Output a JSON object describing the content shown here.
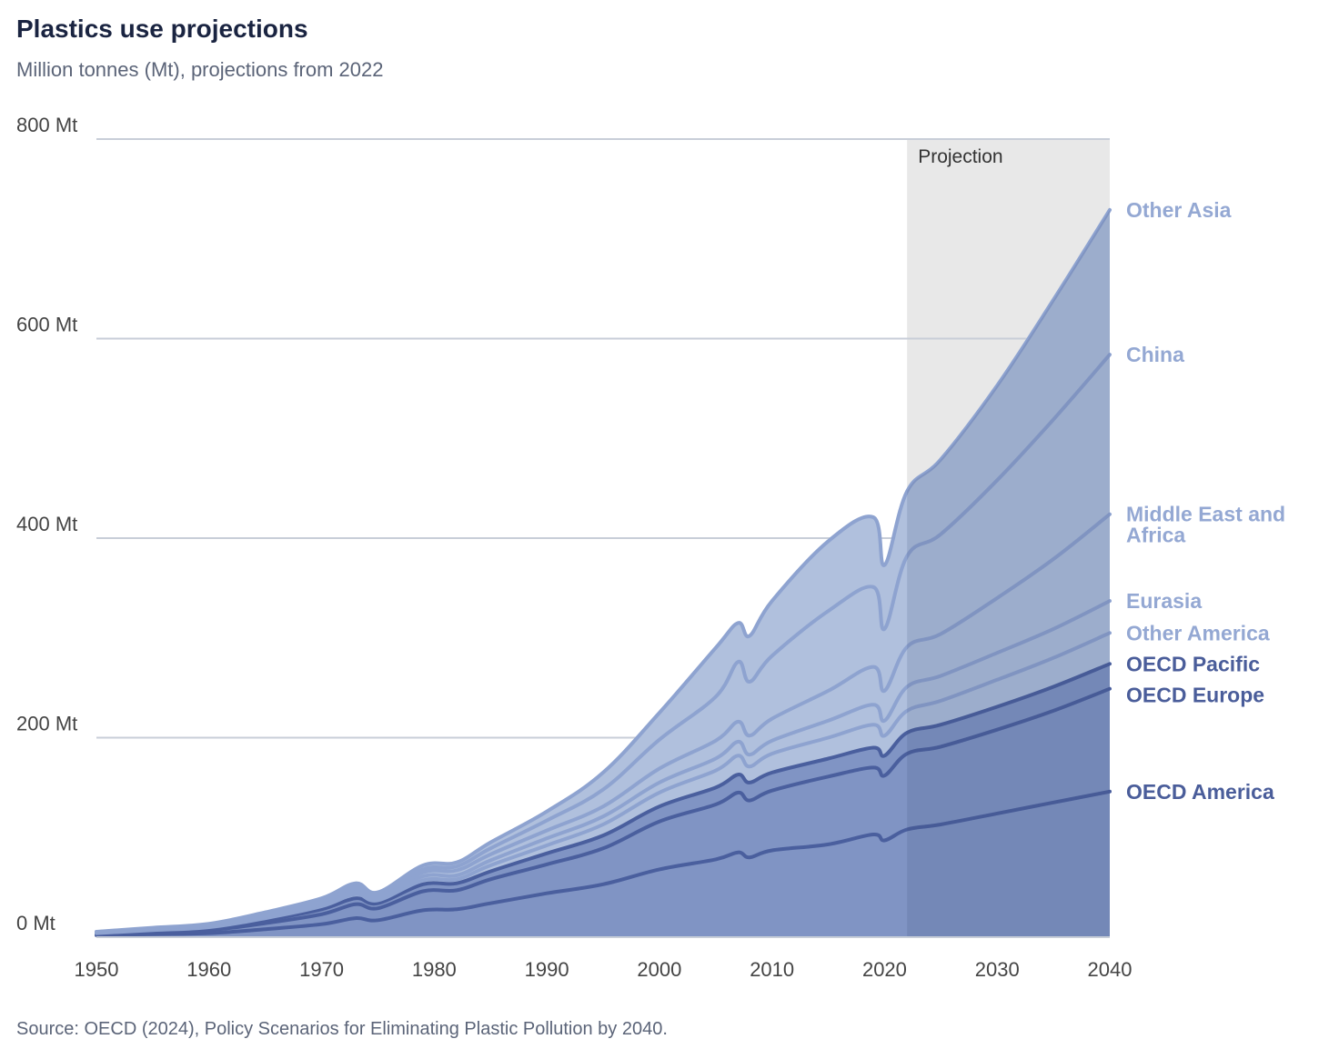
{
  "title": "Plastics use projections",
  "subtitle": "Million tonnes (Mt), projections from 2022",
  "source": "Source: OECD (2024), Policy Scenarios for Eliminating Plastic Pollution by 2040.",
  "projection_label": "Projection",
  "colors": {
    "oecd_fill": "#8094c4",
    "oecd_line": "#4a5f9e",
    "nonoecd_fill": "#b0c0dd",
    "nonoecd_line": "#8ea3d0",
    "projection_shade": "#e8e8e8",
    "grid": "#c8ced8",
    "label_oecd": "#4a5d9a",
    "label_nonoecd": "#94a8d3"
  },
  "chart_data": {
    "type": "area",
    "stacked": true,
    "xlim": [
      1950,
      2040
    ],
    "ylim": [
      0,
      800
    ],
    "projection_start": 2022,
    "x_ticks": [
      1950,
      1960,
      1970,
      1980,
      1990,
      2000,
      2010,
      2020,
      2030,
      2040
    ],
    "y_ticks": [
      {
        "value": 0,
        "label": "0 Mt"
      },
      {
        "value": 200,
        "label": "200 Mt"
      },
      {
        "value": 400,
        "label": "400 Mt"
      },
      {
        "value": 600,
        "label": "600 Mt"
      },
      {
        "value": 800,
        "label": "800 Mt"
      }
    ],
    "x": [
      1950,
      1955,
      1960,
      1965,
      1970,
      1973,
      1975,
      1979,
      1982,
      1985,
      1990,
      1995,
      2000,
      2005,
      2007,
      2008,
      2010,
      2015,
      2019,
      2020,
      2022,
      2025,
      2030,
      2035,
      2040
    ],
    "series": [
      {
        "name": "OECD America",
        "group": "oecd",
        "values": [
          2,
          3,
          4,
          8,
          13,
          19,
          17,
          27,
          28,
          34,
          44,
          53,
          68,
          78,
          85,
          80,
          87,
          93,
          103,
          97,
          108,
          113,
          124,
          135,
          146
        ]
      },
      {
        "name": "OECD Europe",
        "group": "oecd",
        "values": [
          1,
          2,
          3,
          6,
          10,
          14,
          12,
          19,
          19,
          24,
          29,
          36,
          48,
          55,
          60,
          57,
          60,
          68,
          67,
          65,
          76,
          78,
          84,
          92,
          103
        ]
      },
      {
        "name": "OECD Pacific",
        "group": "oecd",
        "values": [
          0.5,
          1,
          2,
          3,
          5,
          6,
          5,
          7,
          7,
          8,
          11,
          13,
          15,
          17,
          18,
          18,
          18,
          18,
          20,
          20,
          21,
          22,
          23,
          24,
          25
        ]
      },
      {
        "name": "Other America",
        "group": "nonoecd",
        "values": [
          0.5,
          1,
          1,
          2,
          3,
          4,
          3,
          4,
          4,
          6,
          8,
          11,
          14,
          17,
          19,
          16,
          19,
          21,
          23,
          20,
          22,
          24,
          27,
          29,
          31
        ]
      },
      {
        "name": "Eurasia",
        "group": "nonoecd",
        "values": [
          0.5,
          1,
          1,
          2,
          2,
          3,
          2,
          4,
          4,
          5,
          7,
          8,
          10,
          12,
          14,
          12,
          13,
          17,
          20,
          15,
          24,
          25,
          27,
          29,
          32
        ]
      },
      {
        "name": "Middle East and Africa",
        "group": "nonoecd",
        "values": [
          0.5,
          0.5,
          1,
          1,
          2,
          3,
          2,
          4,
          5,
          6,
          8,
          10,
          14,
          18,
          20,
          19,
          22,
          30,
          38,
          30,
          40,
          42,
          55,
          70,
          87
        ]
      },
      {
        "name": "China",
        "group": "nonoecd",
        "values": [
          0.2,
          0.5,
          0.5,
          1,
          1,
          2,
          2,
          3,
          4,
          6,
          10,
          17,
          29,
          44,
          60,
          54,
          63,
          80,
          80,
          62,
          91,
          100,
          118,
          140,
          160
        ]
      },
      {
        "name": "Other Asia",
        "group": "nonoecd",
        "values": [
          0.3,
          0.5,
          1,
          2,
          3,
          3,
          2,
          4,
          4,
          6,
          9,
          17,
          27,
          49,
          39,
          46,
          55,
          70,
          70,
          64,
          65,
          75,
          95,
          120,
          145
        ]
      }
    ]
  }
}
